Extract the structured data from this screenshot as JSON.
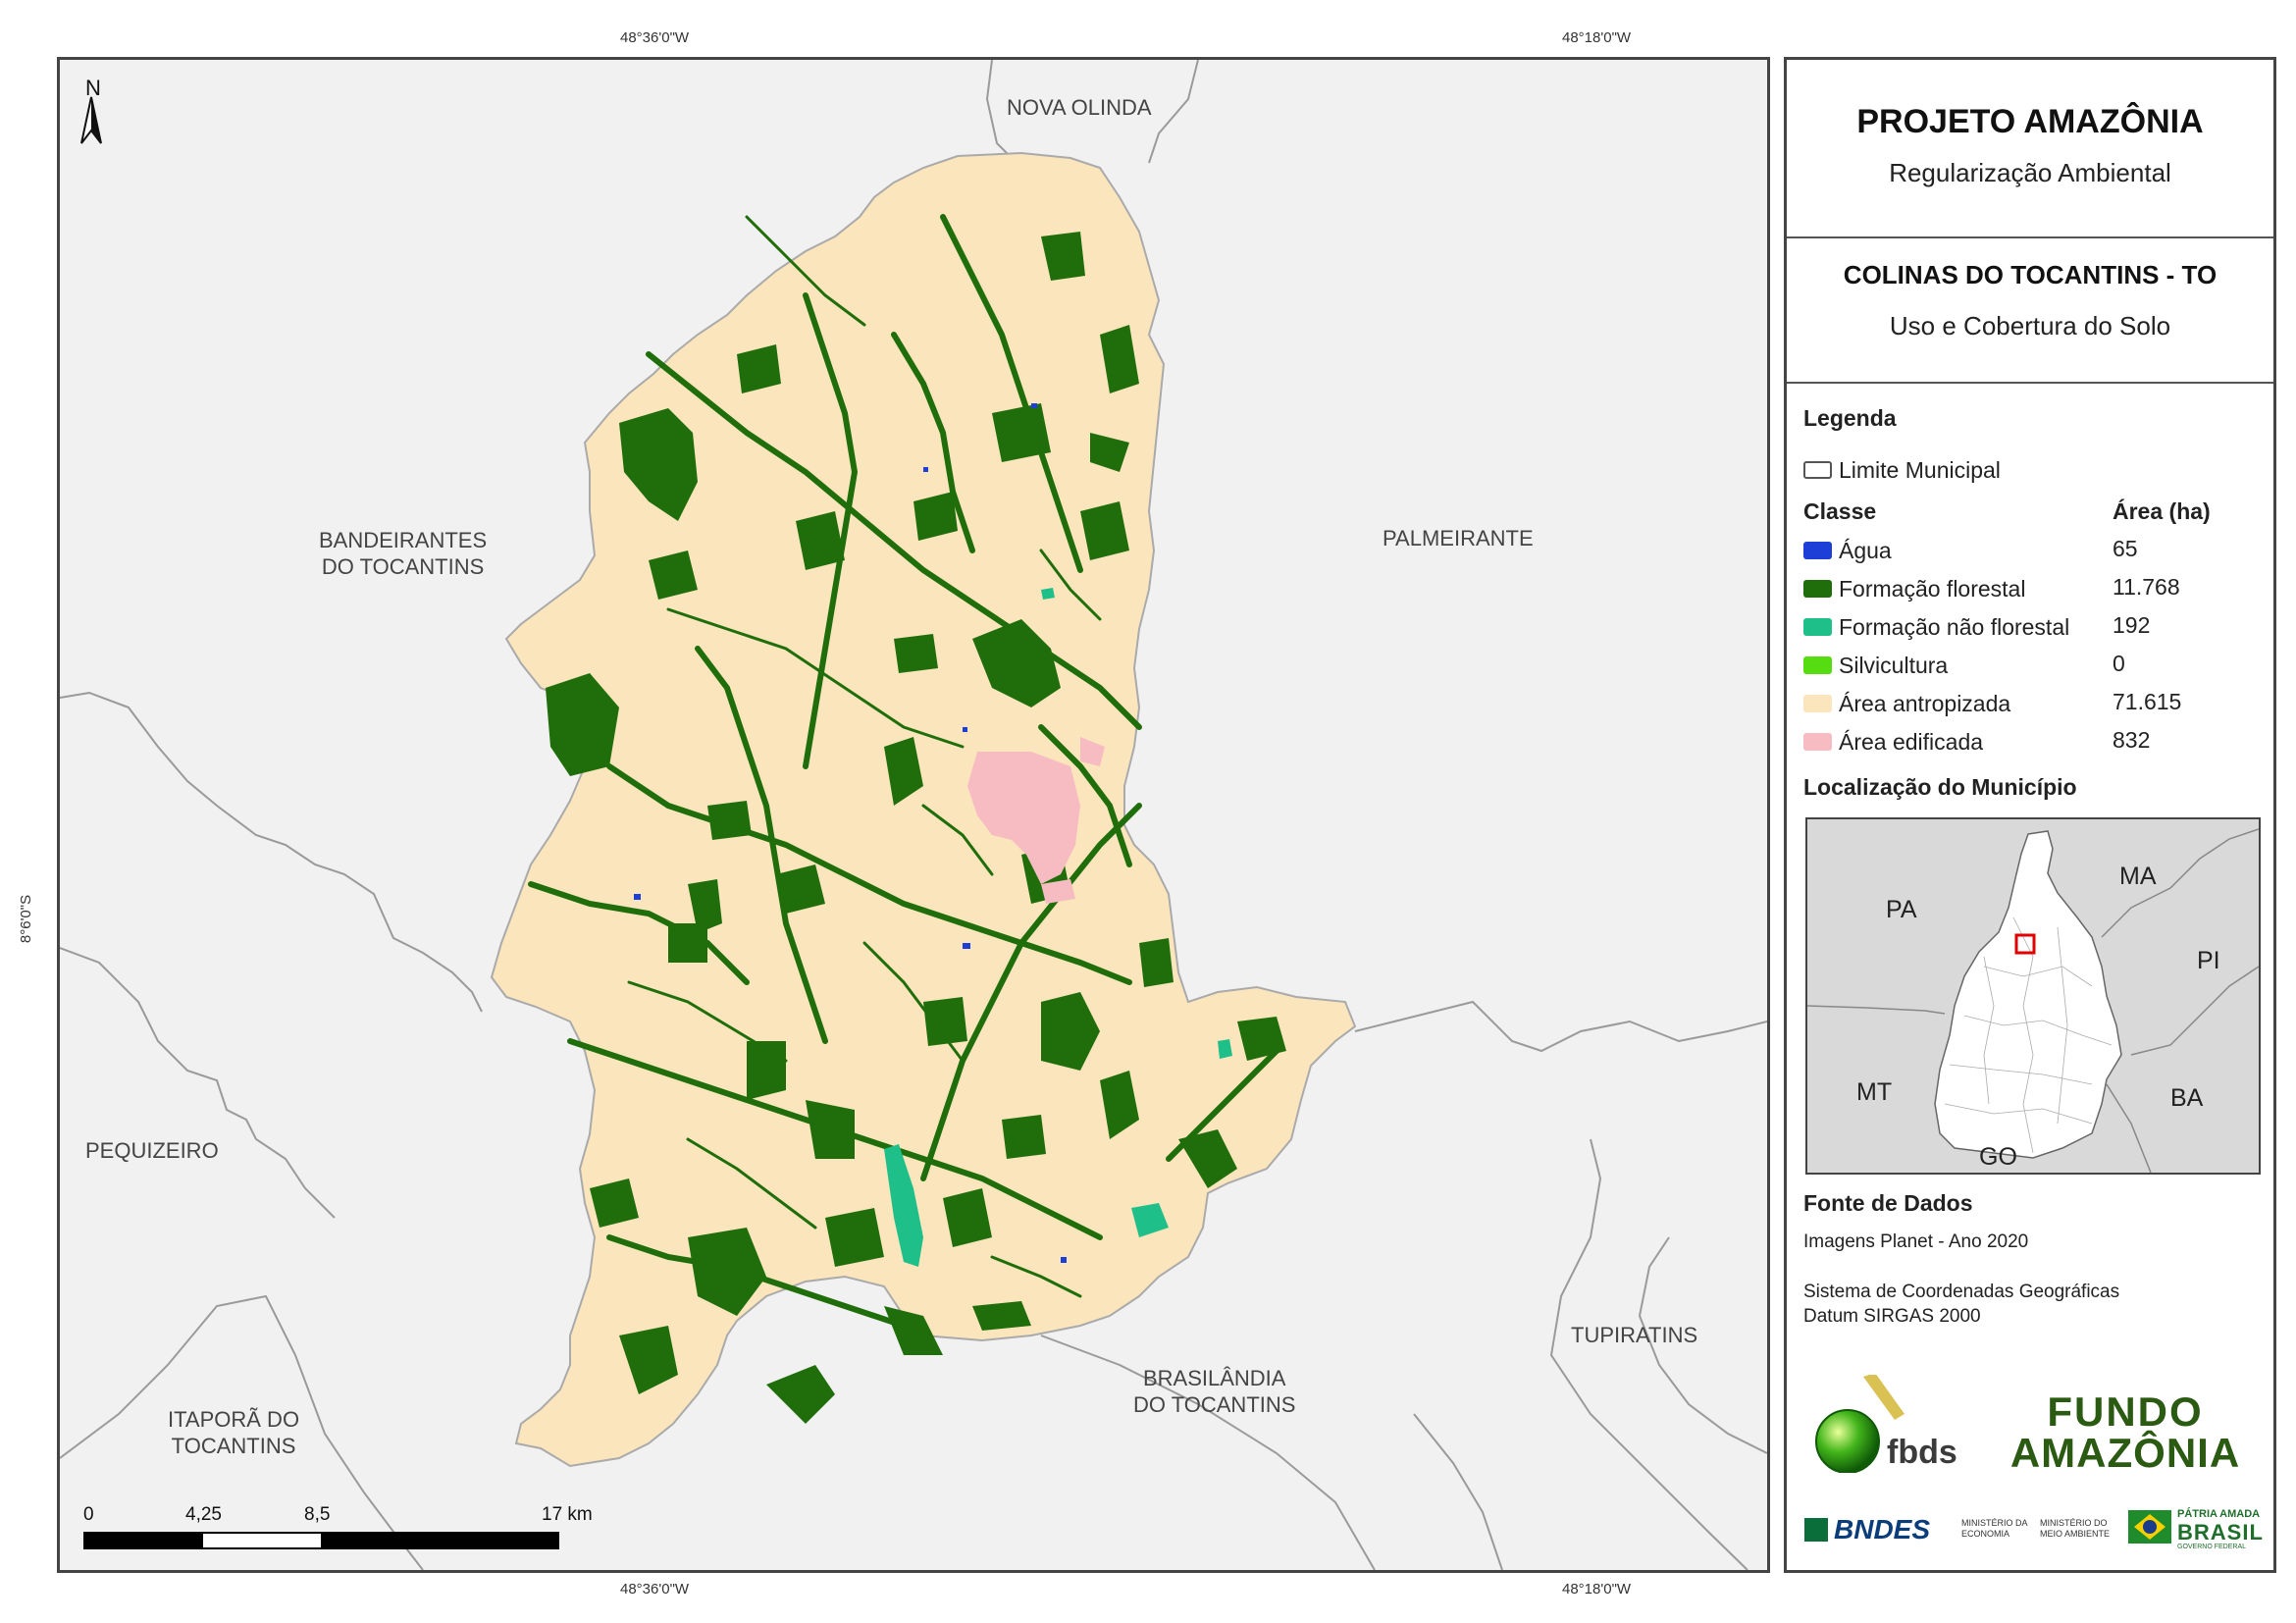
{
  "coordinates": {
    "top_left": "48°36'0\"W",
    "top_right": "48°18'0\"W",
    "bottom_left": "48°36'0\"W",
    "bottom_right": "48°18'0\"W",
    "left_lat": "8°6'0\"S"
  },
  "map": {
    "north_label": "N",
    "neighbors": [
      {
        "name": "NOVA OLINDA"
      },
      {
        "name": "BANDEIRANTES\nDO TOCANTINS"
      },
      {
        "name": "PALMEIRANTE"
      },
      {
        "name": "PEQUIZEIRO"
      },
      {
        "name": "ITAPORÃ DO\nTOCANTINS"
      },
      {
        "name": "BRASILÂNDIA\nDO TOCANTINS"
      },
      {
        "name": "TUPIRATINS"
      }
    ],
    "scale": {
      "labels": [
        "0",
        "4,25",
        "8,5",
        "17 km"
      ]
    },
    "colors": {
      "anthropized": "#fbe5bd",
      "forest": "#1f6e0b",
      "nonforest": "#1fbf8a",
      "water": "#1d3fd8",
      "urban": "#f6bcc1",
      "background": "#f1f1f1",
      "border": "#9a9a9a"
    }
  },
  "panel": {
    "title": "PROJETO AMAZÔNIA",
    "subtitle": "Regularização Ambiental",
    "municipality": "COLINAS DO TOCANTINS - TO",
    "theme": "Uso e Cobertura do Solo",
    "legend_title": "Legenda",
    "limit_label": "Limite Municipal",
    "class_header": "Classe",
    "area_header": "Área (ha)",
    "classes": [
      {
        "name": "Água",
        "area": "65",
        "color": "#1d3fd8"
      },
      {
        "name": "Formação florestal",
        "area": "11.768",
        "color": "#1f6e0b"
      },
      {
        "name": "Formação não florestal",
        "area": "192",
        "color": "#1fbf8a"
      },
      {
        "name": "Silvicultura",
        "area": "0",
        "color": "#55dd11"
      },
      {
        "name": "Área antropizada",
        "area": "71.615",
        "color": "#fbe5bd"
      },
      {
        "name": "Área edificada",
        "area": "832",
        "color": "#f6bcc1"
      }
    ],
    "location_title": "Localização do Município",
    "states": {
      "pa": "PA",
      "ma": "MA",
      "pi": "PI",
      "mt": "MT",
      "ba": "BA",
      "go": "GO"
    },
    "source_title": "Fonte de Dados",
    "source_line": "Imagens Planet - Ano 2020",
    "crs_line1": "Sistema de Coordenadas Geográficas",
    "crs_line2": "Datum SIRGAS 2000",
    "logos": {
      "fbds": "fbds",
      "fundo_line1": "FUNDO",
      "fundo_line2": "AMAZÔNIA",
      "bndes": "BNDES",
      "min_economia": "MINISTÉRIO DA\nECONOMIA",
      "min_ambiente": "MINISTÉRIO DO\nMEIO AMBIENTE",
      "patria": "PÁTRIA AMADA",
      "brasil": "BRASIL",
      "governo": "GOVERNO FEDERAL"
    }
  }
}
